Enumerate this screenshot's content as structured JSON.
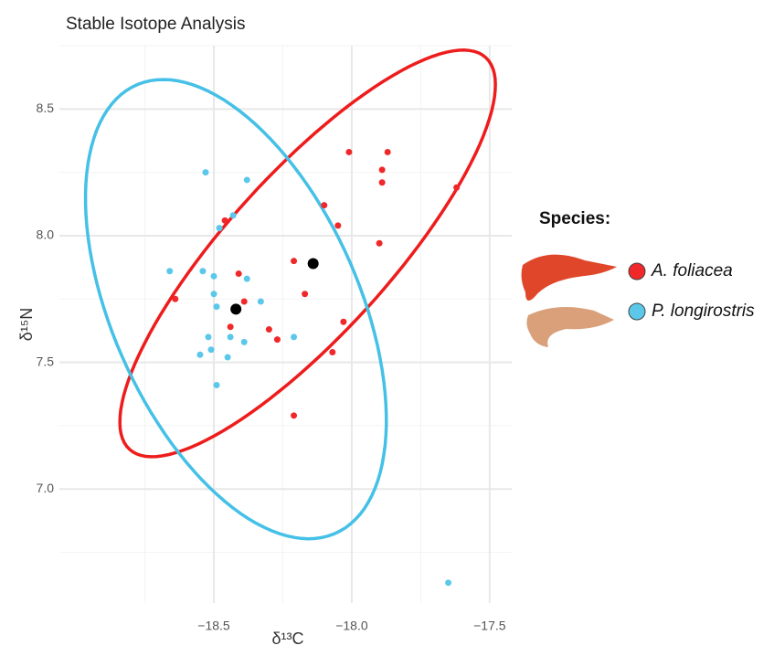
{
  "chart_data": {
    "type": "scatter",
    "title": "Stable Isotope Analysis",
    "x_label": "δ¹³C",
    "y_label": "δ¹⁵N",
    "xlim": [
      -19.06,
      -17.42
    ],
    "ylim": [
      6.55,
      8.75
    ],
    "xticks": [
      {
        "value": -18.5,
        "label": "−18.5"
      },
      {
        "value": -18,
        "label": "−18.0"
      },
      {
        "value": -17.5,
        "label": "−17.5"
      }
    ],
    "yticks": [
      {
        "value": 7,
        "label": "7.0"
      },
      {
        "value": 7.5,
        "label": "7.5"
      },
      {
        "value": 8,
        "label": "8.0"
      },
      {
        "value": 8.5,
        "label": "8.5"
      }
    ],
    "grid": true,
    "legend_title": "Species:",
    "legend_position": "right",
    "series": [
      {
        "name": "A. foliacea",
        "color": "#f0282a",
        "x": [
          -18.64,
          -18.46,
          -18.41,
          -18.44,
          -18.39,
          -18.3,
          -18.27,
          -18.21,
          -18.21,
          -18.17,
          -18.1,
          -18.05,
          -18.01,
          -18.03,
          -18.07,
          -17.9,
          -17.89,
          -17.89,
          -17.87,
          -17.62
        ],
        "y": [
          7.75,
          8.06,
          7.85,
          7.64,
          7.74,
          7.63,
          7.59,
          7.9,
          7.29,
          7.77,
          8.12,
          8.04,
          8.33,
          7.66,
          7.54,
          7.97,
          8.26,
          8.21,
          8.33,
          8.19
        ],
        "ellipse": {
          "color": "#ee1c1c",
          "center": [
            -18.16,
            7.93
          ],
          "axis1": [
            0.646,
            0.773
          ],
          "axis2": [
            0.215,
            -0.216
          ]
        }
      },
      {
        "name": "P. longirostris",
        "color": "#5bc8ea",
        "x": [
          -18.66,
          -18.53,
          -18.38,
          -18.43,
          -18.48,
          -18.54,
          -18.5,
          -18.38,
          -18.5,
          -18.33,
          -18.49,
          -18.52,
          -18.44,
          -18.51,
          -18.39,
          -18.45,
          -18.55,
          -18.49,
          -18.21,
          -17.65
        ],
        "y": [
          7.86,
          8.25,
          8.22,
          8.08,
          8.03,
          7.86,
          7.84,
          7.83,
          7.77,
          7.74,
          7.72,
          7.6,
          7.6,
          7.55,
          7.58,
          7.52,
          7.53,
          7.41,
          7.6,
          6.63
        ],
        "ellipse": {
          "color": "#45c0e6",
          "center": [
            -18.42,
            7.71
          ],
          "axis1": [
            -0.397,
            0.863
          ],
          "axis2": [
            0.374,
            0.277
          ]
        }
      }
    ],
    "means": {
      "color": "#000000",
      "x": [
        -18.42,
        -18.14
      ],
      "y": [
        7.71,
        7.89
      ]
    }
  }
}
